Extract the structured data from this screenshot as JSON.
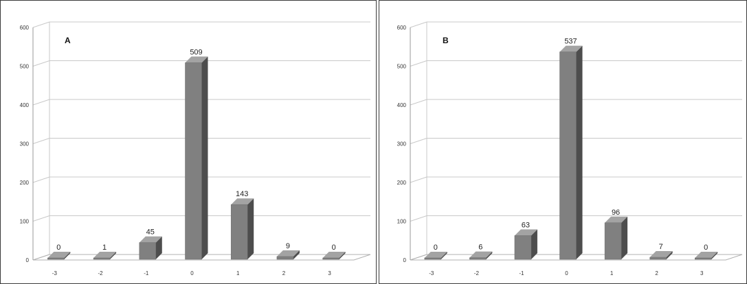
{
  "chart_data": [
    {
      "type": "bar",
      "title": "A",
      "categories": [
        "-3",
        "-2",
        "-1",
        "0",
        "1",
        "2",
        "3"
      ],
      "values": [
        0,
        1,
        45,
        509,
        143,
        9,
        0
      ],
      "data_labels": [
        "0",
        "1",
        "45",
        "509",
        "143",
        "9",
        "0"
      ],
      "y_ticks": [
        "0",
        "100",
        "200",
        "300",
        "400",
        "500",
        "600"
      ],
      "ylim": [
        0,
        600
      ],
      "grid": true,
      "legend": "none",
      "colors": {
        "front": "#808080",
        "side": "#4d4d4d",
        "top": "#a3a3a3"
      }
    },
    {
      "type": "bar",
      "title": "B",
      "categories": [
        "-3",
        "-2",
        "-1",
        "0",
        "1",
        "2",
        "3"
      ],
      "values": [
        0,
        6,
        63,
        537,
        96,
        7,
        0
      ],
      "data_labels": [
        "0",
        "6",
        "63",
        "537",
        "96",
        "7",
        "0"
      ],
      "y_ticks": [
        "0",
        "100",
        "200",
        "300",
        "400",
        "500",
        "600"
      ],
      "ylim": [
        0,
        600
      ],
      "grid": true,
      "legend": "none",
      "colors": {
        "front": "#808080",
        "side": "#4d4d4d",
        "top": "#a3a3a3"
      }
    }
  ]
}
